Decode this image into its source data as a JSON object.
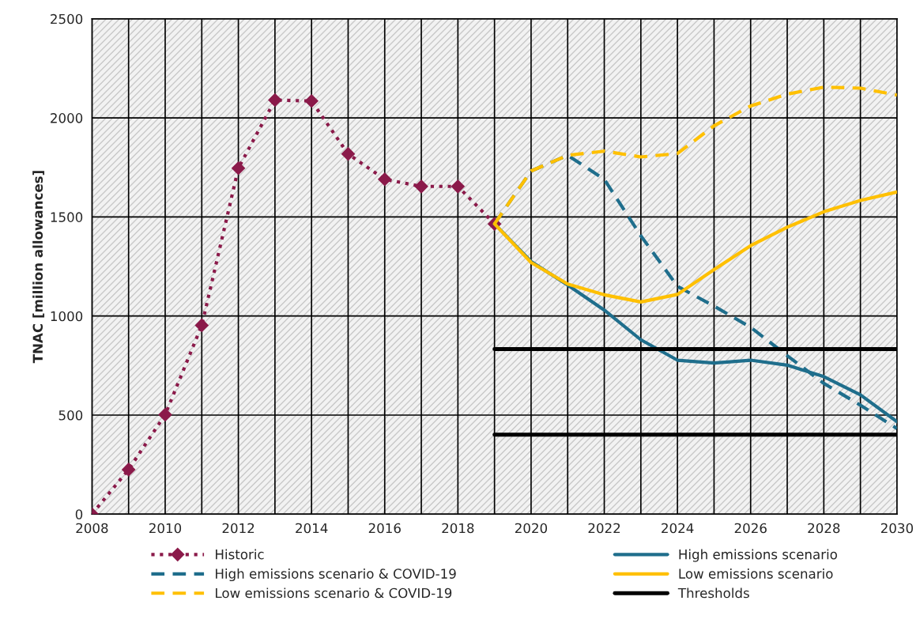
{
  "chart_data": {
    "type": "line",
    "ylabel": "TNAC [million allowances]",
    "xlim": [
      2008,
      2030
    ],
    "ylim": [
      0,
      2500
    ],
    "xticks": [
      2008,
      {
        "value": 2009,
        "label": null
      },
      2010,
      {
        "value": 2011,
        "label": null
      },
      2012,
      {
        "value": 2013,
        "label": null
      },
      2014,
      {
        "value": 2015,
        "label": null
      },
      2016,
      {
        "value": 2017,
        "label": null
      },
      2018,
      {
        "value": 2019,
        "label": null
      },
      2020,
      {
        "value": 2021,
        "label": null
      },
      2022,
      {
        "value": 2023,
        "label": null
      },
      2024,
      {
        "value": 2025,
        "label": null
      },
      2026,
      {
        "value": 2027,
        "label": null
      },
      2028,
      {
        "value": 2029,
        "label": null
      },
      2030
    ],
    "yticks": [
      0,
      500,
      1000,
      1500,
      2000,
      2500
    ],
    "grid": true,
    "legend": "bottom",
    "series": [
      {
        "name": "Historic",
        "color": "#8b1a4a",
        "marker": "diamond",
        "line_style": "dotted",
        "x": [
          2008,
          2009,
          2010,
          2011,
          2012,
          2013,
          2014,
          2015,
          2016,
          2017,
          2018,
          2019
        ],
        "values": [
          0,
          225,
          502,
          953,
          1746,
          2090,
          2085,
          1818,
          1690,
          1654,
          1654,
          1465
        ]
      },
      {
        "name": "High emissions scenario",
        "color": "#1f6e8c",
        "line_style": "solid",
        "x": [
          2019,
          2020,
          2021,
          2022,
          2023,
          2024,
          2025,
          2026,
          2027,
          2028,
          2029,
          2030
        ],
        "values": [
          1465,
          1275,
          1156,
          1030,
          880,
          777,
          763,
          777,
          752,
          694,
          602,
          467
        ]
      },
      {
        "name": "High emissions scenario & COVID-19",
        "color": "#1f6e8c",
        "line_style": "dashed",
        "x": [
          2019,
          2020,
          2021,
          2022,
          2023,
          2024,
          2025,
          2026,
          2027,
          2028,
          2029,
          2030
        ],
        "values": [
          1465,
          1732,
          1811,
          1690,
          1405,
          1150,
          1050,
          943,
          800,
          660,
          550,
          432
        ]
      },
      {
        "name": "Low emissions scenario",
        "color": "#ffc000",
        "line_style": "solid",
        "x": [
          2019,
          2020,
          2021,
          2022,
          2023,
          2024,
          2025,
          2026,
          2027,
          2028,
          2029,
          2030
        ],
        "values": [
          1465,
          1270,
          1161,
          1107,
          1071,
          1109,
          1234,
          1355,
          1448,
          1526,
          1583,
          1626
        ]
      },
      {
        "name": "Low emissions scenario & COVID-19",
        "color": "#ffc000",
        "line_style": "dashed",
        "x": [
          2019,
          2020,
          2021,
          2022,
          2023,
          2024,
          2025,
          2026,
          2027,
          2028,
          2029,
          2030
        ],
        "values": [
          1465,
          1732,
          1811,
          1832,
          1803,
          1820,
          1960,
          2060,
          2120,
          2155,
          2150,
          2115
        ]
      },
      {
        "name": "Thresholds",
        "color": "#000000",
        "line_style": "solid",
        "x": [
          2019,
          2030
        ],
        "values": [
          833,
          833
        ]
      },
      {
        "color": "#000000",
        "line_style": "solid",
        "x": [
          2019,
          2030
        ],
        "values": [
          401,
          401
        ]
      }
    ]
  }
}
